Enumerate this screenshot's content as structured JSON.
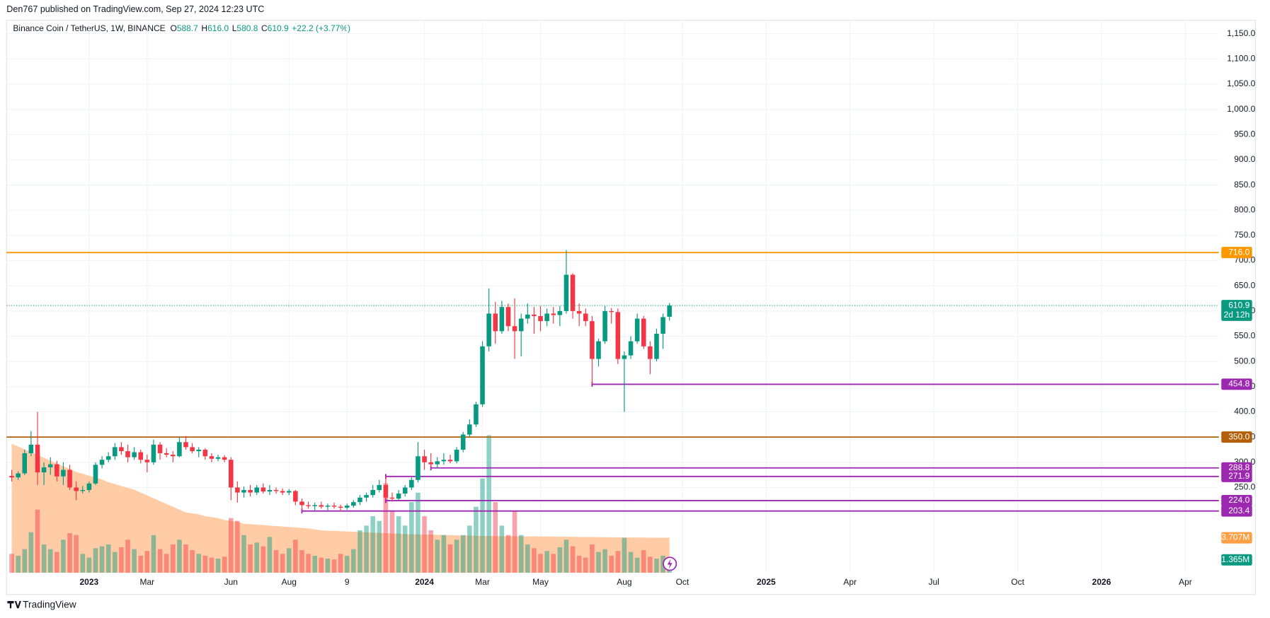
{
  "chart_data": {
    "type": "candlestick",
    "published": "Den767 published on TradingView.com, Sep 27, 2024 12:23 UTC",
    "symbol": "Binance Coin / TetherUS, 1W, BINANCE",
    "ohlc_labels": [
      "O",
      "H",
      "L",
      "C"
    ],
    "ohlc_values": [
      "588.7",
      "616.0",
      "580.8",
      "610.9"
    ],
    "change": "+22.2 (+3.77%)",
    "countdown": "2d 12h",
    "brand": "TradingView",
    "up_color": "#089981",
    "down_color": "#f23645",
    "ylim": [
      81,
      1172
    ],
    "yticks": [
      {
        "value": 250,
        "label": "250.0"
      },
      {
        "value": 300,
        "label": "300.0"
      },
      {
        "value": 350,
        "label": "350.0"
      },
      {
        "value": 400,
        "label": "400.0"
      },
      {
        "value": 450,
        "label": "450.0"
      },
      {
        "value": 500,
        "label": "500.0"
      },
      {
        "value": 550,
        "label": "550.0"
      },
      {
        "value": 600,
        "label": "600.0"
      },
      {
        "value": 650,
        "label": "650.0"
      },
      {
        "value": 700,
        "label": "700.0"
      },
      {
        "value": 750,
        "label": "750.0"
      },
      {
        "value": 800,
        "label": "800.0"
      },
      {
        "value": 850,
        "label": "850.0"
      },
      {
        "value": 900,
        "label": "900.0"
      },
      {
        "value": 950,
        "label": "950.0"
      },
      {
        "value": 1000,
        "label": "1,000.0"
      },
      {
        "value": 1050,
        "label": "1,050.0"
      },
      {
        "value": 1100,
        "label": "1,100.0"
      },
      {
        "value": 1150,
        "label": "1,150.0"
      }
    ],
    "xlim": [
      -0.8,
      187.2
    ],
    "xticks": [
      {
        "value": 12,
        "label": "2023"
      },
      {
        "value": 21,
        "label": "Mar"
      },
      {
        "value": 34,
        "label": "Jun"
      },
      {
        "value": 43,
        "label": "Aug"
      },
      {
        "value": 52,
        "label": "9"
      },
      {
        "value": 64,
        "label": "2024"
      },
      {
        "value": 73,
        "label": "Mar"
      },
      {
        "value": 82,
        "label": "May"
      },
      {
        "value": 95,
        "label": "Aug"
      },
      {
        "value": 104,
        "label": "Oct"
      },
      {
        "value": 117,
        "label": "2025"
      },
      {
        "value": 130,
        "label": "Apr"
      },
      {
        "value": 143,
        "label": "Jul"
      },
      {
        "value": 156,
        "label": "Oct"
      },
      {
        "value": 169,
        "label": "2026"
      },
      {
        "value": 182,
        "label": "Apr"
      }
    ],
    "grid": true,
    "open": [
      273,
      270,
      278,
      318,
      335,
      280,
      290,
      296,
      272,
      285,
      250,
      243,
      245,
      258,
      295,
      305,
      312,
      330,
      322,
      310,
      320,
      305,
      300,
      335,
      318,
      315,
      312,
      340,
      330,
      322,
      325,
      312,
      307,
      310,
      305,
      250,
      240,
      245,
      240,
      250,
      242,
      245,
      243,
      240,
      243,
      222,
      215,
      213,
      215,
      212,
      214,
      212,
      210,
      214,
      221,
      230,
      235,
      245,
      255,
      230,
      228,
      238,
      250,
      265,
      312,
      300,
      296,
      302,
      305,
      302,
      325,
      355,
      375,
      415,
      530,
      595,
      560,
      608,
      570,
      560,
      585,
      593,
      590,
      580,
      595,
      592,
      600,
      672,
      600,
      595,
      580,
      505,
      540,
      600,
      598,
      505,
      512,
      540,
      585,
      530,
      505,
      555,
      588.7
    ],
    "high": [
      285,
      282,
      325,
      362,
      400,
      300,
      310,
      303,
      300,
      295,
      262,
      253,
      262,
      300,
      312,
      320,
      338,
      340,
      335,
      330,
      325,
      315,
      345,
      340,
      328,
      322,
      350,
      352,
      338,
      330,
      328,
      318,
      315,
      314,
      310,
      262,
      252,
      255,
      255,
      258,
      255,
      250,
      248,
      247,
      245,
      228,
      222,
      220,
      222,
      218,
      220,
      216,
      218,
      225,
      235,
      240,
      255,
      265,
      272,
      240,
      245,
      255,
      270,
      340,
      325,
      318,
      310,
      318,
      315,
      330,
      360,
      385,
      420,
      540,
      645,
      618,
      620,
      615,
      625,
      595,
      615,
      608,
      610,
      605,
      608,
      610,
      721,
      675,
      615,
      605,
      590,
      545,
      610,
      606,
      605,
      520,
      550,
      595,
      590,
      540,
      565,
      595,
      616
    ],
    "low": [
      262,
      265,
      275,
      312,
      255,
      255,
      275,
      262,
      255,
      245,
      225,
      238,
      240,
      255,
      288,
      300,
      305,
      315,
      300,
      305,
      298,
      280,
      295,
      305,
      310,
      300,
      310,
      325,
      318,
      310,
      305,
      300,
      302,
      300,
      225,
      220,
      230,
      232,
      235,
      238,
      235,
      238,
      235,
      235,
      215,
      205,
      208,
      205,
      208,
      205,
      208,
      203,
      206,
      210,
      215,
      222,
      230,
      240,
      225,
      222,
      225,
      232,
      245,
      260,
      285,
      290,
      288,
      295,
      298,
      298,
      320,
      350,
      370,
      410,
      520,
      535,
      555,
      560,
      505,
      510,
      575,
      555,
      560,
      570,
      575,
      570,
      595,
      585,
      570,
      570,
      455,
      490,
      535,
      575,
      495,
      400,
      505,
      535,
      525,
      475,
      500,
      525,
      580.8
    ],
    "close": [
      270,
      278,
      318,
      335,
      280,
      290,
      296,
      272,
      285,
      250,
      243,
      245,
      258,
      295,
      305,
      312,
      330,
      322,
      310,
      320,
      305,
      300,
      335,
      318,
      315,
      312,
      340,
      330,
      322,
      325,
      312,
      307,
      310,
      305,
      250,
      240,
      245,
      240,
      250,
      242,
      245,
      243,
      240,
      243,
      222,
      215,
      213,
      215,
      212,
      214,
      212,
      210,
      214,
      221,
      230,
      235,
      245,
      255,
      230,
      228,
      238,
      250,
      265,
      312,
      300,
      296,
      302,
      305,
      302,
      325,
      355,
      375,
      415,
      530,
      595,
      560,
      608,
      570,
      560,
      585,
      593,
      590,
      580,
      595,
      592,
      600,
      672,
      600,
      595,
      580,
      505,
      540,
      600,
      598,
      505,
      512,
      540,
      585,
      530,
      505,
      555,
      588,
      610.9
    ],
    "price_label": "610.9",
    "y2lim": [
      0,
      58.4
    ],
    "volume": [
      2.0,
      1.8,
      2.5,
      4.3,
      6.7,
      3.0,
      2.5,
      2.2,
      3.5,
      4.2,
      4.0,
      2.0,
      1.6,
      2.6,
      2.8,
      3.0,
      2.2,
      2.7,
      3.5,
      2.5,
      1.8,
      2.3,
      4.0,
      2.5,
      2.0,
      3.0,
      3.5,
      3.0,
      2.4,
      2.0,
      1.8,
      1.6,
      1.5,
      1.7,
      5.8,
      5.5,
      4.0,
      3.0,
      3.2,
      2.8,
      3.8,
      2.4,
      2.0,
      2.6,
      3.5,
      2.4,
      2.0,
      1.8,
      1.6,
      1.5,
      1.4,
      2.0,
      1.8,
      2.5,
      4.5,
      5.0,
      6.0,
      5.5,
      9.5,
      6.5,
      6.0,
      5.0,
      7.5,
      8.5,
      6.0,
      4.5,
      3.5,
      4.0,
      3.0,
      3.5,
      4.0,
      5.0,
      7.0,
      10.0,
      14.6,
      7.5,
      5.0,
      4.0,
      6.5,
      4.0,
      3.0,
      2.6,
      2.0,
      2.3,
      2.0,
      2.7,
      3.5,
      2.8,
      1.8,
      1.6,
      3.0,
      2.2,
      2.5,
      1.8,
      2.3,
      3.7,
      2.2,
      1.6,
      2.4,
      1.7,
      1.5,
      1.8,
      1.365
    ],
    "volume_label": "1.365M",
    "volume_ma": [
      13.7,
      13.4,
      13.1,
      12.8,
      12.5,
      12.2,
      11.9,
      11.6,
      11.3,
      11.0,
      10.7,
      10.5,
      10.3,
      10.1,
      9.9,
      9.6,
      9.4,
      9.2,
      9.0,
      8.8,
      8.5,
      8.2,
      7.9,
      7.6,
      7.3,
      7.0,
      6.7,
      6.4,
      6.3,
      6.2,
      6.0,
      5.9,
      5.8,
      5.6,
      5.5,
      5.4,
      5.2,
      5.15,
      5.1,
      5.05,
      5.0,
      4.95,
      4.9,
      4.85,
      4.8,
      4.75,
      4.7,
      4.6,
      4.5,
      4.47,
      4.44,
      4.41,
      4.38,
      4.35,
      4.32,
      4.29,
      4.26,
      4.23,
      4.2,
      4.17,
      4.14,
      4.1,
      4.08,
      4.07,
      4.05,
      4.04,
      4.02,
      4.0,
      3.99,
      3.97,
      3.95,
      3.94,
      3.92,
      3.91,
      3.9,
      3.89,
      3.88,
      3.88,
      3.87,
      3.86,
      3.86,
      3.85,
      3.84,
      3.84,
      3.83,
      3.82,
      3.81,
      3.81,
      3.8,
      3.79,
      3.79,
      3.78,
      3.77,
      3.76,
      3.76,
      3.75,
      3.74,
      3.74,
      3.73,
      3.72,
      3.72,
      3.71,
      3.707
    ],
    "volume_ma_label": "3.707M",
    "volume_ma_color": "#ffcca6",
    "levels": [
      {
        "value": 716,
        "label": "716.0",
        "color": "#ff9800"
      },
      {
        "value": 350,
        "label": "350.0",
        "color": "#b45f06"
      },
      {
        "value": 454.8,
        "label": "454.8",
        "color": "#9c27b0",
        "from": 90
      },
      {
        "value": 288.8,
        "label": "288.8",
        "color": "#9c27b0",
        "from": 65
      },
      {
        "value": 271.9,
        "label": "271.9",
        "color": "#9c27b0",
        "from": 58
      },
      {
        "value": 224,
        "label": "224.0",
        "color": "#9c27b0",
        "from": 58
      },
      {
        "value": 203.4,
        "label": "203.4",
        "color": "#9c27b0",
        "from": 45
      }
    ]
  }
}
